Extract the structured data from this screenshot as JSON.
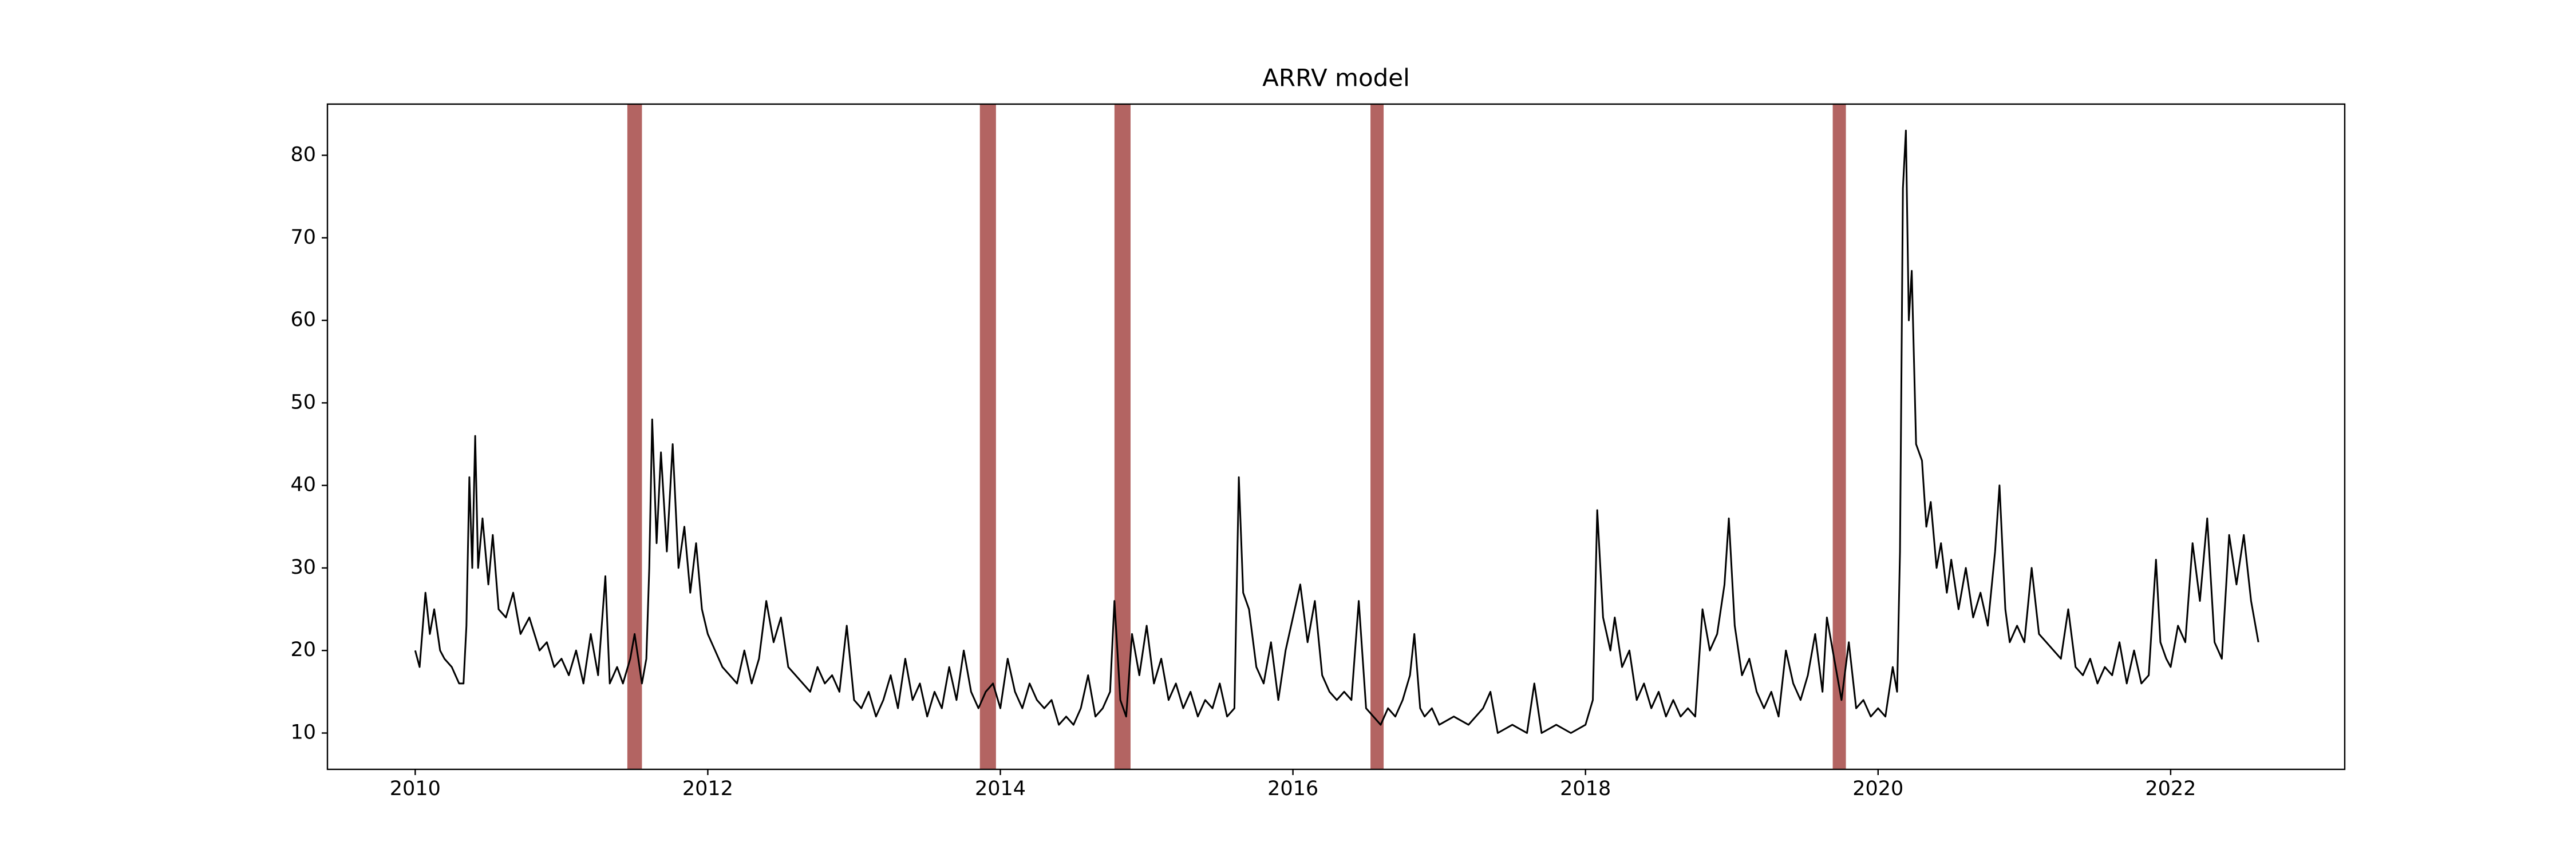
{
  "chart_data": {
    "type": "line",
    "title": "ARRV model",
    "x": [
      2010.0,
      2010.03,
      2010.07,
      2010.1,
      2010.13,
      2010.17,
      2010.2,
      2010.25,
      2010.3,
      2010.33,
      2010.35,
      2010.37,
      2010.39,
      2010.41,
      2010.43,
      2010.46,
      2010.5,
      2010.53,
      2010.57,
      2010.62,
      2010.67,
      2010.72,
      2010.78,
      2010.85,
      2010.9,
      2010.95,
      2011.0,
      2011.05,
      2011.1,
      2011.15,
      2011.2,
      2011.25,
      2011.3,
      2011.33,
      2011.38,
      2011.42,
      2011.47,
      2011.5,
      2011.55,
      2011.58,
      2011.6,
      2011.62,
      2011.65,
      2011.68,
      2011.72,
      2011.76,
      2011.8,
      2011.84,
      2011.88,
      2011.92,
      2011.96,
      2012.0,
      2012.05,
      2012.1,
      2012.15,
      2012.2,
      2012.25,
      2012.3,
      2012.35,
      2012.4,
      2012.45,
      2012.5,
      2012.55,
      2012.6,
      2012.65,
      2012.7,
      2012.75,
      2012.8,
      2012.85,
      2012.9,
      2012.95,
      2013.0,
      2013.05,
      2013.1,
      2013.15,
      2013.2,
      2013.25,
      2013.3,
      2013.35,
      2013.4,
      2013.45,
      2013.5,
      2013.55,
      2013.6,
      2013.65,
      2013.7,
      2013.75,
      2013.8,
      2013.85,
      2013.9,
      2013.95,
      2014.0,
      2014.05,
      2014.1,
      2014.15,
      2014.2,
      2014.25,
      2014.3,
      2014.35,
      2014.4,
      2014.45,
      2014.5,
      2014.55,
      2014.6,
      2014.65,
      2014.7,
      2014.75,
      2014.78,
      2014.82,
      2014.86,
      2014.9,
      2014.95,
      2015.0,
      2015.05,
      2015.1,
      2015.15,
      2015.2,
      2015.25,
      2015.3,
      2015.35,
      2015.4,
      2015.45,
      2015.5,
      2015.55,
      2015.6,
      2015.63,
      2015.66,
      2015.7,
      2015.75,
      2015.8,
      2015.85,
      2015.9,
      2015.95,
      2016.0,
      2016.05,
      2016.1,
      2016.15,
      2016.2,
      2016.25,
      2016.3,
      2016.35,
      2016.4,
      2016.45,
      2016.5,
      2016.55,
      2016.6,
      2016.65,
      2016.7,
      2016.75,
      2016.8,
      2016.83,
      2016.87,
      2016.9,
      2016.95,
      2017.0,
      2017.1,
      2017.2,
      2017.3,
      2017.35,
      2017.4,
      2017.5,
      2017.6,
      2017.65,
      2017.7,
      2017.8,
      2017.9,
      2018.0,
      2018.05,
      2018.08,
      2018.12,
      2018.17,
      2018.2,
      2018.25,
      2018.3,
      2018.35,
      2018.4,
      2018.45,
      2018.5,
      2018.55,
      2018.6,
      2018.65,
      2018.7,
      2018.75,
      2018.8,
      2018.85,
      2018.9,
      2018.95,
      2018.98,
      2019.02,
      2019.07,
      2019.12,
      2019.17,
      2019.22,
      2019.27,
      2019.32,
      2019.37,
      2019.42,
      2019.47,
      2019.52,
      2019.57,
      2019.62,
      2019.65,
      2019.7,
      2019.75,
      2019.8,
      2019.85,
      2019.9,
      2019.95,
      2020.0,
      2020.05,
      2020.1,
      2020.13,
      2020.15,
      2020.17,
      2020.19,
      2020.21,
      2020.23,
      2020.26,
      2020.3,
      2020.33,
      2020.36,
      2020.4,
      2020.43,
      2020.47,
      2020.5,
      2020.55,
      2020.6,
      2020.65,
      2020.7,
      2020.75,
      2020.8,
      2020.83,
      2020.87,
      2020.9,
      2020.95,
      2021.0,
      2021.05,
      2021.1,
      2021.15,
      2021.2,
      2021.25,
      2021.3,
      2021.35,
      2021.4,
      2021.45,
      2021.5,
      2021.55,
      2021.6,
      2021.65,
      2021.7,
      2021.75,
      2021.8,
      2021.85,
      2021.9,
      2021.93,
      2021.97,
      2022.0,
      2022.05,
      2022.1,
      2022.15,
      2022.2,
      2022.25,
      2022.3,
      2022.35,
      2022.4,
      2022.45,
      2022.5,
      2022.55,
      2022.6
    ],
    "values": [
      20,
      18,
      27,
      22,
      25,
      20,
      19,
      18,
      16,
      16,
      23,
      41,
      30,
      46,
      30,
      36,
      28,
      34,
      25,
      24,
      27,
      22,
      24,
      20,
      21,
      18,
      19,
      17,
      20,
      16,
      22,
      17,
      29,
      16,
      18,
      16,
      19,
      22,
      16,
      19,
      30,
      48,
      33,
      44,
      32,
      45,
      30,
      35,
      27,
      33,
      25,
      22,
      20,
      18,
      17,
      16,
      20,
      16,
      19,
      26,
      21,
      24,
      18,
      17,
      16,
      15,
      18,
      16,
      17,
      15,
      23,
      14,
      13,
      15,
      12,
      14,
      17,
      13,
      19,
      14,
      16,
      12,
      15,
      13,
      18,
      14,
      20,
      15,
      13,
      15,
      16,
      13,
      19,
      15,
      13,
      16,
      14,
      13,
      14,
      11,
      12,
      11,
      13,
      17,
      12,
      13,
      15,
      26,
      14,
      12,
      22,
      17,
      23,
      16,
      19,
      14,
      16,
      13,
      15,
      12,
      14,
      13,
      16,
      12,
      13,
      41,
      27,
      25,
      18,
      16,
      21,
      14,
      20,
      24,
      28,
      21,
      26,
      17,
      15,
      14,
      15,
      14,
      26,
      13,
      12,
      11,
      13,
      12,
      14,
      17,
      22,
      13,
      12,
      13,
      11,
      12,
      11,
      13,
      15,
      10,
      11,
      10,
      16,
      10,
      11,
      10,
      11,
      14,
      37,
      24,
      20,
      24,
      18,
      20,
      14,
      16,
      13,
      15,
      12,
      14,
      12,
      13,
      12,
      25,
      20,
      22,
      28,
      36,
      23,
      17,
      19,
      15,
      13,
      15,
      12,
      20,
      16,
      14,
      17,
      22,
      15,
      24,
      19,
      14,
      21,
      13,
      14,
      12,
      13,
      12,
      18,
      15,
      32,
      76,
      83,
      60,
      66,
      45,
      43,
      35,
      38,
      30,
      33,
      27,
      31,
      25,
      30,
      24,
      27,
      23,
      32,
      40,
      25,
      21,
      23,
      21,
      30,
      22,
      21,
      20,
      19,
      25,
      18,
      17,
      19,
      16,
      18,
      17,
      21,
      16,
      20,
      16,
      17,
      31,
      21,
      19,
      18,
      23,
      21,
      33,
      26,
      36,
      21,
      19,
      34,
      28,
      34,
      26,
      21
    ],
    "color": "#000000",
    "bands": [
      [
        2011.45,
        2011.55
      ],
      [
        2013.86,
        2013.97
      ],
      [
        2014.78,
        2014.89
      ],
      [
        2016.53,
        2016.62
      ],
      [
        2019.69,
        2019.78
      ]
    ],
    "band_color": "#b36462",
    "xlim": [
      2009.4,
      2023.19
    ],
    "xticks": [
      2010,
      2012,
      2014,
      2016,
      2018,
      2020,
      2022
    ],
    "ylim": [
      5.6,
      86.2
    ],
    "yticks": [
      10,
      20,
      30,
      40,
      50,
      60,
      70,
      80
    ]
  }
}
